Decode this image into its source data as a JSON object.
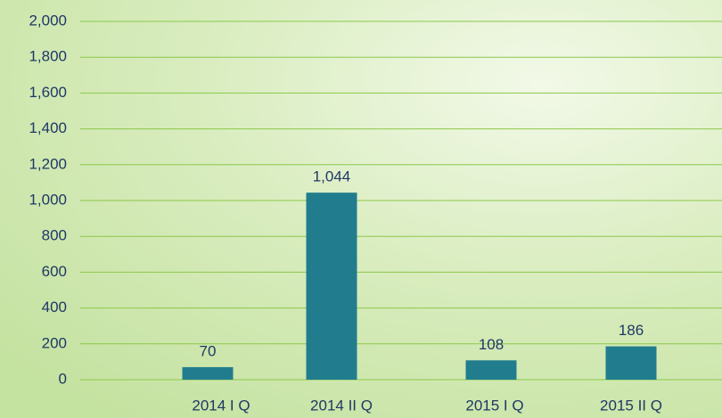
{
  "chart_data": {
    "type": "bar",
    "categories": [
      "2014 I Q",
      "2014 II Q",
      "2015 I Q",
      "2015 II Q"
    ],
    "values": [
      70,
      1044,
      108,
      186
    ],
    "value_labels": [
      "70",
      "1,044",
      "108",
      "186"
    ],
    "color": "#217d8e",
    "ylim": [
      0,
      2000
    ],
    "yticks": [
      0,
      200,
      400,
      600,
      800,
      {
        "value": 1000,
        "label": "1,000"
      },
      {
        "value": 1200,
        "label": "1,200"
      },
      {
        "value": 1400,
        "label": "1,400"
      },
      {
        "value": 1600,
        "label": "1,600"
      },
      {
        "value": 1800,
        "label": "1,800"
      },
      {
        "value": 2000,
        "label": "2,000"
      }
    ],
    "grid": true
  }
}
